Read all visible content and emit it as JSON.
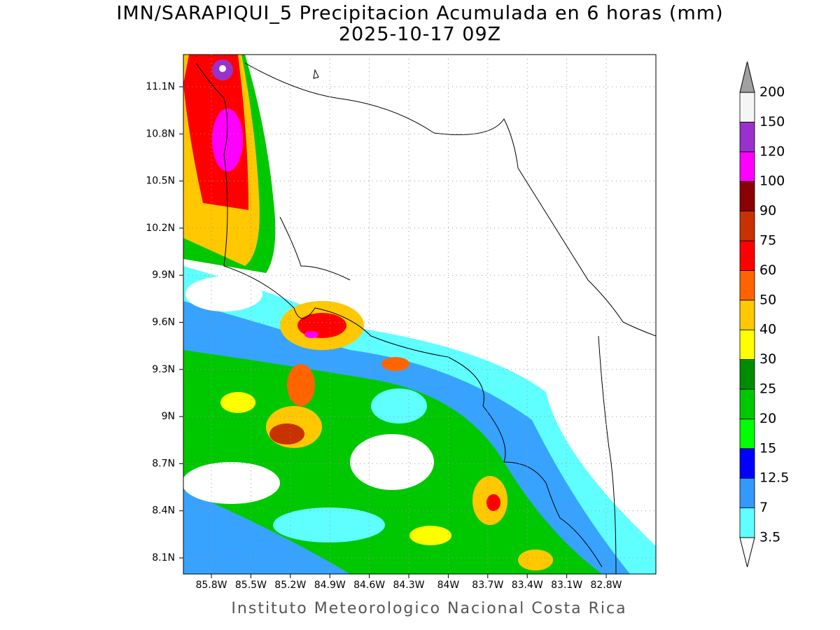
{
  "header": {
    "title": "IMN/SARAPIQUI_5 Precipitacion Acumulada en 6 horas (mm)",
    "subtitle": "2025-10-17 09Z"
  },
  "map": {
    "lat_labels": [
      "11.1N",
      "10.8N",
      "10.5N",
      "10.2N",
      "9.9N",
      "9.6N",
      "9.3N",
      "9N",
      "8.7N",
      "8.4N",
      "8.1N"
    ],
    "lon_labels": [
      "85.8W",
      "85.5W",
      "85.2W",
      "84.9W",
      "84.6W",
      "84.3W",
      "84W",
      "83.7W",
      "83.4W",
      "83.1W",
      "82.8W"
    ]
  },
  "colorbar": {
    "levels": [
      "3.5",
      "7",
      "12.5",
      "15",
      "20",
      "25",
      "30",
      "40",
      "50",
      "60",
      "75",
      "90",
      "100",
      "120",
      "150",
      "200"
    ],
    "colors": [
      "#5fffff",
      "#3399ff",
      "#0000ff",
      "#00ff00",
      "#00c800",
      "#008c00",
      "#ffff00",
      "#ffc800",
      "#ff6400",
      "#ff0000",
      "#c83200",
      "#8b0000",
      "#ff00ff",
      "#9932cc",
      "#f5f5f5"
    ],
    "under_color": "#ffffff",
    "over_color": "#a0a0a0"
  },
  "footer": "Instituto Meteorologico Nacional Costa Rica"
}
